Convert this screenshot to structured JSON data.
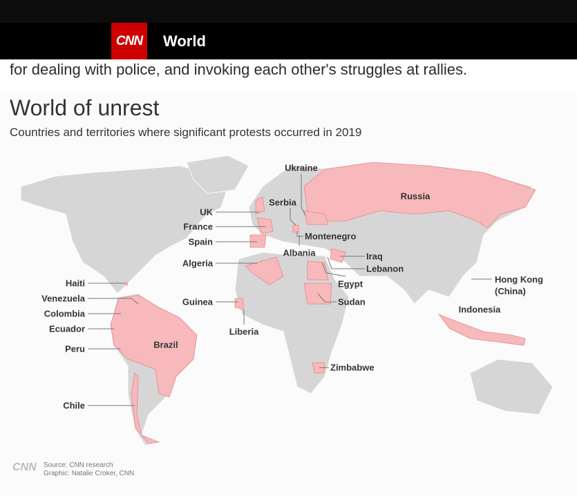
{
  "header": {
    "logo": "CNN",
    "section": "World"
  },
  "article": {
    "text": "for dealing with police, and invoking each other's struggles at rallies."
  },
  "graphic": {
    "title": "World of unrest",
    "subtitle": "Countries and territories where significant protests occurred in 2019",
    "labels": [
      "Ukraine",
      "Russia",
      "Serbia",
      "UK",
      "France",
      "Spain",
      "Algeria",
      "Montenegro",
      "Albania",
      "Iraq",
      "Lebanon",
      "Egypt",
      "Sudan",
      "Hong Kong (China)",
      "Indonesia",
      "Haiti",
      "Venezuela",
      "Colombia",
      "Ecuador",
      "Peru",
      "Chile",
      "Guinea",
      "Liberia",
      "Brazil",
      "Zimbabwe"
    ],
    "footer": {
      "logo": "CNN",
      "source": "Source: CNN research",
      "credit": "Graphic: Natalie Croker, CNN"
    }
  }
}
